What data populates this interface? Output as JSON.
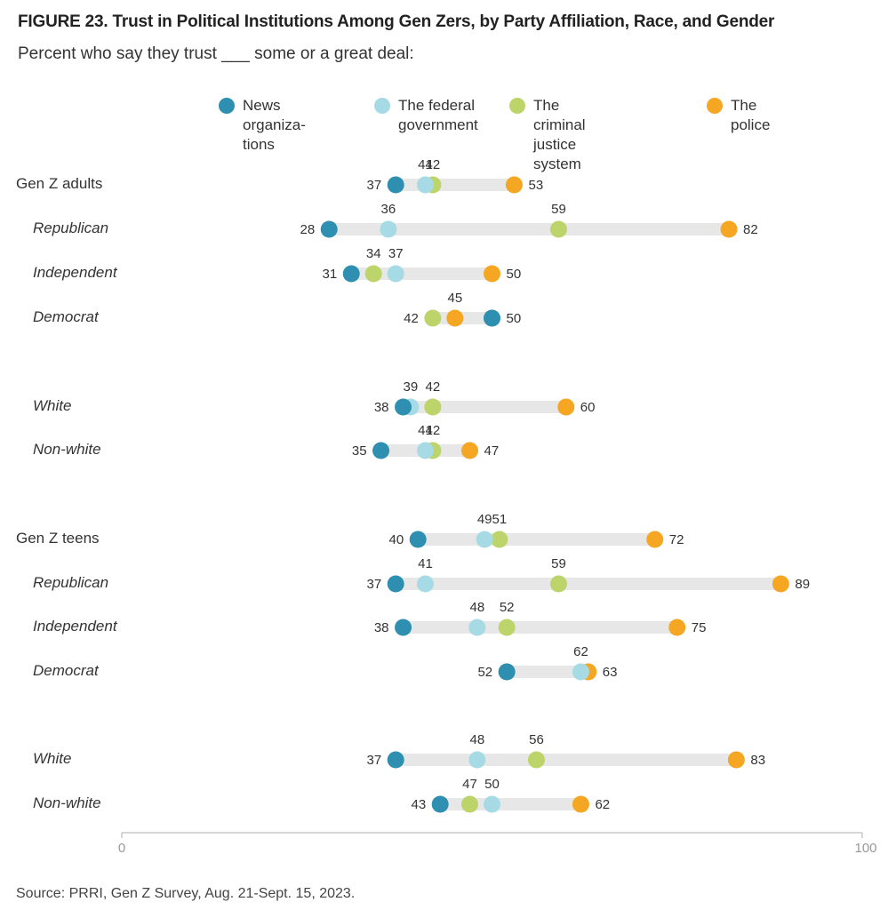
{
  "title": "FIGURE 23. Trust in Political Institutions Among Gen Zers, by Party Affiliation, Race, and Gender",
  "subtitle": "Percent who say they trust ___ some or a great deal:",
  "source": "Source: PRRI, Gen Z Survey, Aug. 21-Sept. 15, 2023.",
  "colors": {
    "news": "#2e8fb0",
    "federal": "#a6dbe6",
    "criminal": "#bcd46a",
    "police": "#f5a623",
    "track": "#e6e7e6"
  },
  "chart_data": {
    "type": "dot",
    "title": "FIGURE 23. Trust in Political Institutions Among Gen Zers, by Party Affiliation, Race, and Gender",
    "xlim": [
      0,
      100
    ],
    "x_ticks": [
      "0",
      "100"
    ],
    "grid": false,
    "legend_position": "top",
    "series": [
      {
        "key": "news",
        "name": "News organiza-\ntions"
      },
      {
        "key": "federal",
        "name": "The federal\ngovernment"
      },
      {
        "key": "criminal",
        "name": "The criminal justice\nsystem"
      },
      {
        "key": "police",
        "name": "The police"
      }
    ],
    "rows": [
      {
        "label": "Gen Z adults",
        "sub": false,
        "news": 37,
        "federal": 41,
        "criminal": 42,
        "police": 53
      },
      {
        "label": "Republican",
        "sub": true,
        "news": 28,
        "federal": 36,
        "criminal": 59,
        "police": 82
      },
      {
        "label": "Independent",
        "sub": true,
        "news": 31,
        "federal": 37,
        "criminal": 34,
        "police": 50
      },
      {
        "label": "Democrat",
        "sub": true,
        "news": 50,
        "federal": 50,
        "criminal": 42,
        "police": 45
      },
      {
        "label": "White",
        "sub": true,
        "news": 38,
        "federal": 39,
        "criminal": 42,
        "police": 60
      },
      {
        "label": "Non-white",
        "sub": true,
        "news": 35,
        "federal": 41,
        "criminal": 42,
        "police": 47
      },
      {
        "label": "Gen Z teens",
        "sub": false,
        "news": 40,
        "federal": 49,
        "criminal": 51,
        "police": 72
      },
      {
        "label": "Republican",
        "sub": true,
        "news": 37,
        "federal": 41,
        "criminal": 59,
        "police": 89
      },
      {
        "label": "Independent",
        "sub": true,
        "news": 38,
        "federal": 48,
        "criminal": 52,
        "police": 75
      },
      {
        "label": "Democrat",
        "sub": true,
        "news": 52,
        "federal": 62,
        "criminal": 52,
        "police": 63
      },
      {
        "label": "White",
        "sub": true,
        "news": 37,
        "federal": 48,
        "criminal": 56,
        "police": 83
      },
      {
        "label": "Non-white",
        "sub": true,
        "news": 43,
        "federal": 50,
        "criminal": 47,
        "police": 62
      }
    ]
  }
}
